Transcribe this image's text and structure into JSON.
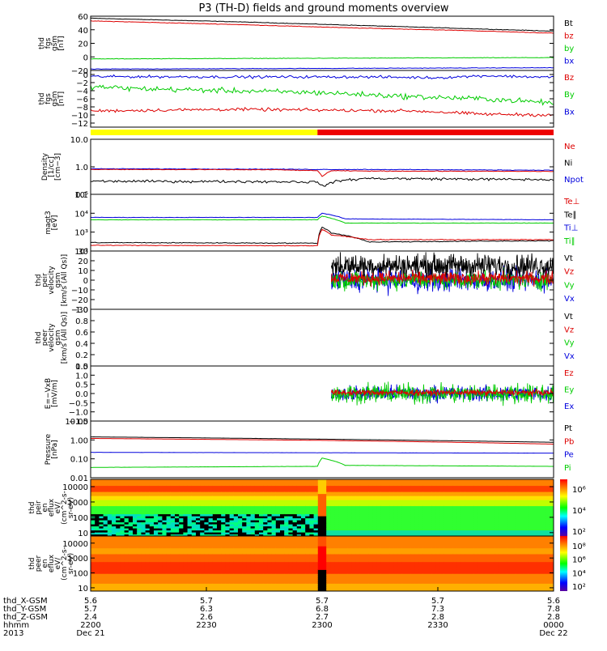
{
  "title": "P3 (TH-D) fields and ground moments overview",
  "chart_data": [
    {
      "id": "fgs_gsm",
      "type": "line",
      "ylabel": [
        "thd",
        "fgs",
        "gsm",
        "[nT]"
      ],
      "ylim": [
        -20,
        60
      ],
      "ticks": [
        {
          "v": 60,
          "label": "60"
        },
        {
          "v": 40,
          "label": "40"
        },
        {
          "v": 20,
          "label": "20"
        },
        {
          "v": 0,
          "label": "0"
        },
        {
          "v": -20,
          "label": "−20"
        }
      ],
      "legend": [
        {
          "name": "Bt",
          "color": "#000000"
        },
        {
          "name": "bz",
          "color": "#dd0000"
        },
        {
          "name": "by",
          "color": "#00cc00"
        },
        {
          "name": "bx",
          "color": "#0000dd"
        }
      ],
      "series": [
        {
          "name": "Bt",
          "color": "#000000",
          "x": [
            0,
            0.3,
            0.55,
            0.8,
            1
          ],
          "y": [
            57,
            52,
            47,
            42,
            38
          ],
          "noise": 0.3
        },
        {
          "name": "bz",
          "color": "#dd0000",
          "x": [
            0,
            0.3,
            0.55,
            0.8,
            1
          ],
          "y": [
            53,
            48,
            43,
            39,
            35
          ],
          "noise": 0.3
        },
        {
          "name": "by",
          "color": "#00cc00",
          "x": [
            0,
            0.5,
            1
          ],
          "y": [
            -3,
            -2,
            -1
          ],
          "noise": 0.3
        },
        {
          "name": "bx",
          "color": "#0000dd",
          "x": [
            0,
            0.5,
            1
          ],
          "y": [
            -18,
            -17,
            -16
          ],
          "noise": 0.3
        }
      ]
    },
    {
      "id": "fgs_gsm_dtrend",
      "type": "line",
      "ylabel": [
        "thd",
        "fgs",
        "gsm",
        "[nT]"
      ],
      "ylim": [
        -13,
        1
      ],
      "ticks": [
        {
          "v": 0,
          "label": "0"
        },
        {
          "v": -2,
          "label": "−2"
        },
        {
          "v": -4,
          "label": "−4"
        },
        {
          "v": -6,
          "label": "−6"
        },
        {
          "v": -8,
          "label": "−8"
        },
        {
          "v": -10,
          "label": "−10"
        },
        {
          "v": -12,
          "label": "−12"
        }
      ],
      "legend": [
        {
          "name": "Bz",
          "color": "#dd0000"
        },
        {
          "name": "By",
          "color": "#00cc00"
        },
        {
          "name": "Bx",
          "color": "#0000dd"
        }
      ],
      "series": [
        {
          "name": "Bx",
          "color": "#0000dd",
          "x": [
            0,
            0.3,
            0.6,
            0.75,
            0.85,
            1
          ],
          "y": [
            -0.5,
            -0.6,
            -0.6,
            -0.8,
            -0.3,
            -0.7
          ],
          "noise": 0.25
        },
        {
          "name": "By",
          "color": "#00cc00",
          "x": [
            0,
            0.1,
            0.3,
            0.5,
            0.7,
            0.85,
            1
          ],
          "y": [
            -3,
            -3.5,
            -4,
            -4.5,
            -5.5,
            -6,
            -7
          ],
          "noise": 0.5
        },
        {
          "name": "Bz",
          "color": "#dd0000",
          "x": [
            0,
            0.3,
            0.5,
            0.7,
            0.85,
            1
          ],
          "y": [
            -9,
            -8.6,
            -8.8,
            -9,
            -9.8,
            -10
          ],
          "noise": 0.3
        }
      ]
    },
    {
      "id": "density",
      "type": "line",
      "ylabel": [
        "Density",
        "[1/cc]",
        "[cm−3]"
      ],
      "yscale": "log",
      "ylim": [
        0.1,
        10
      ],
      "ticks": [
        {
          "v": 10,
          "label": "10.0"
        },
        {
          "v": 1,
          "label": "1.0"
        },
        {
          "v": 0.1,
          "label": "0.1"
        }
      ],
      "legend": [
        {
          "name": "Ne",
          "color": "#dd0000"
        },
        {
          "name": "Ni",
          "color": "#000000"
        },
        {
          "name": "Npot",
          "color": "#0000dd"
        }
      ],
      "series": [
        {
          "name": "Npot",
          "color": "#0000dd",
          "x": [
            0,
            0.4,
            0.49,
            0.505,
            0.53,
            0.6,
            1
          ],
          "y": [
            0.85,
            0.82,
            0.8,
            0.8,
            0.8,
            0.8,
            0.75
          ],
          "noise": 0.02
        },
        {
          "name": "Ne",
          "color": "#dd0000",
          "x": [
            0,
            0.4,
            0.49,
            0.5,
            0.52,
            0.6,
            1
          ],
          "y": [
            0.8,
            0.78,
            0.72,
            0.45,
            0.72,
            0.7,
            0.68
          ],
          "noise": 0.02
        },
        {
          "name": "Ni",
          "color": "#000000",
          "x": [
            0,
            0.4,
            0.49,
            0.5,
            0.54,
            0.6,
            1
          ],
          "y": [
            0.3,
            0.29,
            0.28,
            0.2,
            0.32,
            0.38,
            0.34
          ],
          "noise": 0.08
        }
      ]
    },
    {
      "id": "temperature",
      "type": "line",
      "ylabel": [
        "magt3",
        "[eV]"
      ],
      "yscale": "log",
      "ylim": [
        100,
        100000
      ],
      "ticks": [
        {
          "v": 100000,
          "label": "10⁵"
        },
        {
          "v": 10000,
          "label": "10⁴"
        },
        {
          "v": 1000,
          "label": "10³"
        },
        {
          "v": 100,
          "label": "10²"
        }
      ],
      "legend": [
        {
          "name": "Te⊥",
          "color": "#dd0000"
        },
        {
          "name": "Te∥",
          "color": "#000000"
        },
        {
          "name": "Ti⊥",
          "color": "#0000dd"
        },
        {
          "name": "Ti∥",
          "color": "#00cc00"
        }
      ],
      "series": [
        {
          "name": "Ti⊥",
          "color": "#0000dd",
          "x": [
            0,
            0.49,
            0.5,
            0.55,
            1
          ],
          "y": [
            6000,
            6000,
            10000,
            5000,
            4500
          ],
          "noise": 0.02
        },
        {
          "name": "Ti∥",
          "color": "#00cc00",
          "x": [
            0,
            0.49,
            0.5,
            0.55,
            1
          ],
          "y": [
            4500,
            4500,
            7000,
            3000,
            3000
          ],
          "noise": 0.02
        },
        {
          "name": "Te∥",
          "color": "#000000",
          "x": [
            0,
            0.49,
            0.5,
            0.52,
            0.6,
            1
          ],
          "y": [
            280,
            260,
            1800,
            900,
            300,
            350
          ],
          "noise": 0.04
        },
        {
          "name": "Te⊥",
          "color": "#dd0000",
          "x": [
            0,
            0.49,
            0.5,
            0.52,
            0.6,
            1
          ],
          "y": [
            200,
            190,
            1400,
            700,
            400,
            400
          ],
          "noise": 0.03
        }
      ]
    },
    {
      "id": "peir_velocity",
      "type": "line",
      "ylabel": [
        "thd",
        "peir",
        "velocity",
        "gsm",
        "[km/s (All Qs)]"
      ],
      "ylim": [
        -30,
        30
      ],
      "ticks": [
        {
          "v": 30,
          "label": "30"
        },
        {
          "v": 20,
          "label": "20"
        },
        {
          "v": 10,
          "label": "10"
        },
        {
          "v": 0,
          "label": "0"
        },
        {
          "v": -10,
          "label": "−10"
        },
        {
          "v": -20,
          "label": "−20"
        },
        {
          "v": -30,
          "label": "−30"
        }
      ],
      "legend": [
        {
          "name": "Vt",
          "color": "#000000"
        },
        {
          "name": "Vz",
          "color": "#dd0000"
        },
        {
          "name": "Vy",
          "color": "#00cc00"
        },
        {
          "name": "Vx",
          "color": "#0000dd"
        }
      ],
      "series": [
        {
          "name": "Vx",
          "color": "#0000dd",
          "x": [
            0.52,
            1
          ],
          "y": [
            0,
            0
          ],
          "noise": 9,
          "kind": "noisy"
        },
        {
          "name": "Vy",
          "color": "#00cc00",
          "x": [
            0.52,
            1
          ],
          "y": [
            0,
            0
          ],
          "noise": 7,
          "kind": "noisy"
        },
        {
          "name": "Vt",
          "color": "#000000",
          "x": [
            0.52,
            1
          ],
          "y": [
            15,
            15
          ],
          "noise": 9,
          "kind": "noisy"
        },
        {
          "name": "Vz",
          "color": "#dd0000",
          "x": [
            0.52,
            1
          ],
          "y": [
            2,
            2
          ],
          "noise": 5,
          "kind": "noisy"
        }
      ]
    },
    {
      "id": "peer_velocity",
      "type": "line",
      "ylabel": [
        "thd",
        "peer",
        "velocity",
        "gsm",
        "[km/s (All Qs)]"
      ],
      "ylim": [
        0,
        1
      ],
      "ticks": [
        {
          "v": 1.0,
          "label": "1.0"
        },
        {
          "v": 0.8,
          "label": "0.8"
        },
        {
          "v": 0.6,
          "label": "0.6"
        },
        {
          "v": 0.4,
          "label": "0.4"
        },
        {
          "v": 0.2,
          "label": "0.2"
        },
        {
          "v": 0.0,
          "label": "0.0"
        }
      ],
      "legend": [
        {
          "name": "Vt",
          "color": "#000000"
        },
        {
          "name": "Vz",
          "color": "#dd0000"
        },
        {
          "name": "Vy",
          "color": "#00cc00"
        },
        {
          "name": "Vx",
          "color": "#0000dd"
        }
      ],
      "series": []
    },
    {
      "id": "efield",
      "type": "line",
      "ylabel": [
        "E=−VxB",
        "[mV/m]"
      ],
      "ylim": [
        -1.5,
        1.5
      ],
      "ticks": [
        {
          "v": 1.5,
          "label": "1.5"
        },
        {
          "v": 1.0,
          "label": "1.0"
        },
        {
          "v": 0.5,
          "label": "0.5"
        },
        {
          "v": 0.0,
          "label": "0.0"
        },
        {
          "v": -0.5,
          "label": "−0.5"
        },
        {
          "v": -1.0,
          "label": "−1.0"
        },
        {
          "v": -1.5,
          "label": "−1.5"
        }
      ],
      "legend": [
        {
          "name": "Ez",
          "color": "#dd0000"
        },
        {
          "name": "Ey",
          "color": "#00cc00"
        },
        {
          "name": "Ex",
          "color": "#0000dd"
        }
      ],
      "series": [
        {
          "name": "Ex",
          "color": "#0000dd",
          "x": [
            0.52,
            1
          ],
          "y": [
            0,
            0
          ],
          "noise": 0.32,
          "kind": "noisy"
        },
        {
          "name": "Ey",
          "color": "#00cc00",
          "x": [
            0.52,
            1
          ],
          "y": [
            0,
            0
          ],
          "noise": 0.4,
          "kind": "noisy"
        },
        {
          "name": "Ez",
          "color": "#dd0000",
          "x": [
            0.52,
            1
          ],
          "y": [
            0.05,
            0.05
          ],
          "noise": 0.12,
          "kind": "noisy"
        }
      ]
    },
    {
      "id": "pressure",
      "type": "line",
      "ylabel": [
        "Pressure",
        "[nPa]"
      ],
      "yscale": "log",
      "ylim": [
        0.01,
        10
      ],
      "ticks": [
        {
          "v": 10,
          "label": "10.00"
        },
        {
          "v": 1,
          "label": "1.00"
        },
        {
          "v": 0.1,
          "label": "0.10"
        },
        {
          "v": 0.01,
          "label": "0.01"
        }
      ],
      "legend": [
        {
          "name": "Pt",
          "color": "#000000"
        },
        {
          "name": "Pb",
          "color": "#dd0000"
        },
        {
          "name": "Pe",
          "color": "#0000dd"
        },
        {
          "name": "Pi",
          "color": "#00cc00"
        }
      ],
      "series": [
        {
          "name": "Pt",
          "color": "#000000",
          "x": [
            0,
            0.5,
            1
          ],
          "y": [
            1.45,
            1.1,
            0.75
          ],
          "noise": 0.005
        },
        {
          "name": "Pb",
          "color": "#dd0000",
          "x": [
            0,
            0.5,
            1
          ],
          "y": [
            1.2,
            0.95,
            0.6
          ],
          "noise": 0.005
        },
        {
          "name": "Pe",
          "color": "#0000dd",
          "x": [
            0,
            1
          ],
          "y": [
            0.22,
            0.2
          ],
          "noise": 0.005
        },
        {
          "name": "Pi",
          "color": "#00cc00",
          "x": [
            0,
            0.49,
            0.5,
            0.55,
            1
          ],
          "y": [
            0.035,
            0.04,
            0.11,
            0.045,
            0.04
          ],
          "noise": 0.01
        }
      ]
    },
    {
      "id": "peir_en_eflux",
      "type": "heatmap",
      "ylabel": [
        "thd",
        "peir",
        "en",
        "eflux",
        "eV/",
        "(cm^2-s-",
        "sr-eV)"
      ],
      "yscale": "log",
      "ylim": [
        6,
        30000
      ],
      "ticks": [
        {
          "v": 10000,
          "label": "10000"
        },
        {
          "v": 1000,
          "label": "1000"
        },
        {
          "v": 100,
          "label": "100"
        },
        {
          "v": 10,
          "label": "10"
        }
      ],
      "colorbar_ticks": [
        "10⁶",
        "10⁴",
        "10²"
      ]
    },
    {
      "id": "peer_en_eflux",
      "type": "heatmap",
      "ylabel": [
        "thd",
        "peer",
        "en",
        "eflux",
        "eV/",
        "(cm^2-s-",
        "sr-eV)"
      ],
      "yscale": "log",
      "ylim": [
        6,
        30000
      ],
      "ticks": [
        {
          "v": 10000,
          "label": "10000"
        },
        {
          "v": 1000,
          "label": "1000"
        },
        {
          "v": 100,
          "label": "100"
        },
        {
          "v": 10,
          "label": "10"
        }
      ],
      "colorbar_ticks": [
        "10⁸",
        "10⁶",
        "10⁴",
        "10²"
      ]
    }
  ],
  "mode_bar": {
    "segments": [
      {
        "from": 0,
        "to": 0.49,
        "color": "#ffff00"
      },
      {
        "from": 0.49,
        "to": 1,
        "color": "#ee0000"
      }
    ]
  },
  "x_axis": {
    "rows": [
      {
        "label": "thd_X-GSM",
        "values": [
          "5.6",
          "5.7",
          "5.7",
          "5.7",
          "5.6"
        ]
      },
      {
        "label": "thd_Y-GSM",
        "values": [
          "5.7",
          "6.3",
          "6.8",
          "7.3",
          "7.8"
        ]
      },
      {
        "label": "thd_Z-GSM",
        "values": [
          "2.4",
          "2.6",
          "2.7",
          "2.8",
          "2.8"
        ]
      },
      {
        "label": "hhmm",
        "values": [
          "2200",
          "2230",
          "2300",
          "2330",
          "0000"
        ]
      },
      {
        "label": "2013",
        "values": [
          "Dec 21",
          "",
          "",
          "",
          "Dec 22"
        ]
      }
    ]
  }
}
